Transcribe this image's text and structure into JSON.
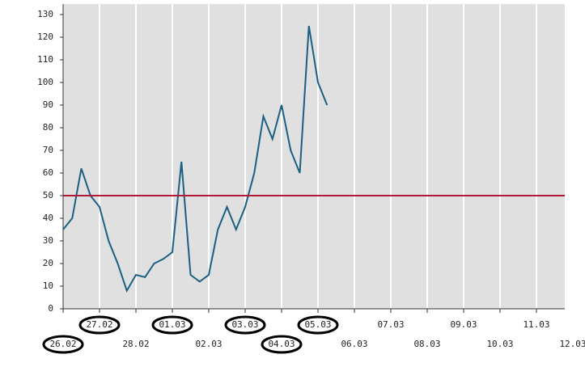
{
  "chart_data": {
    "type": "line",
    "categories": [
      "26.02",
      null,
      null,
      null,
      "27.02",
      null,
      null,
      null,
      "28.02",
      null,
      null,
      null,
      "01.03",
      null,
      null,
      null,
      "02.03",
      null,
      null,
      null,
      "03.03",
      null,
      null,
      null,
      "04.03",
      null,
      null,
      null,
      "05.03",
      null,
      null,
      null,
      "06.03",
      null,
      null,
      null,
      "07.03",
      null,
      null,
      null,
      "08.03",
      null,
      null,
      null,
      "09.03",
      null,
      null,
      null,
      "10.03",
      null,
      null,
      null,
      "11.03",
      null,
      null,
      null,
      "12.03"
    ],
    "series": [
      {
        "color": "#1b5f82",
        "values": [
          35,
          40,
          62,
          50,
          45,
          30,
          20,
          8,
          15,
          14,
          20,
          22,
          25,
          65,
          15,
          12,
          15,
          35,
          45,
          35,
          45,
          60,
          85,
          75,
          90,
          70,
          60,
          125,
          100,
          90,
          null,
          null,
          null,
          null,
          null,
          null,
          null,
          null,
          null,
          null,
          null,
          null,
          null,
          null,
          null,
          null,
          null,
          null,
          null,
          null,
          null,
          null,
          null,
          null,
          null,
          null,
          null
        ]
      }
    ],
    "ylim": [
      0,
      130
    ],
    "yticks": [
      0,
      10,
      20,
      30,
      40,
      50,
      60,
      70,
      80,
      90,
      100,
      110,
      120,
      130
    ],
    "threshold": 50,
    "threshold_color": "#b0183a",
    "grid": true
  }
}
